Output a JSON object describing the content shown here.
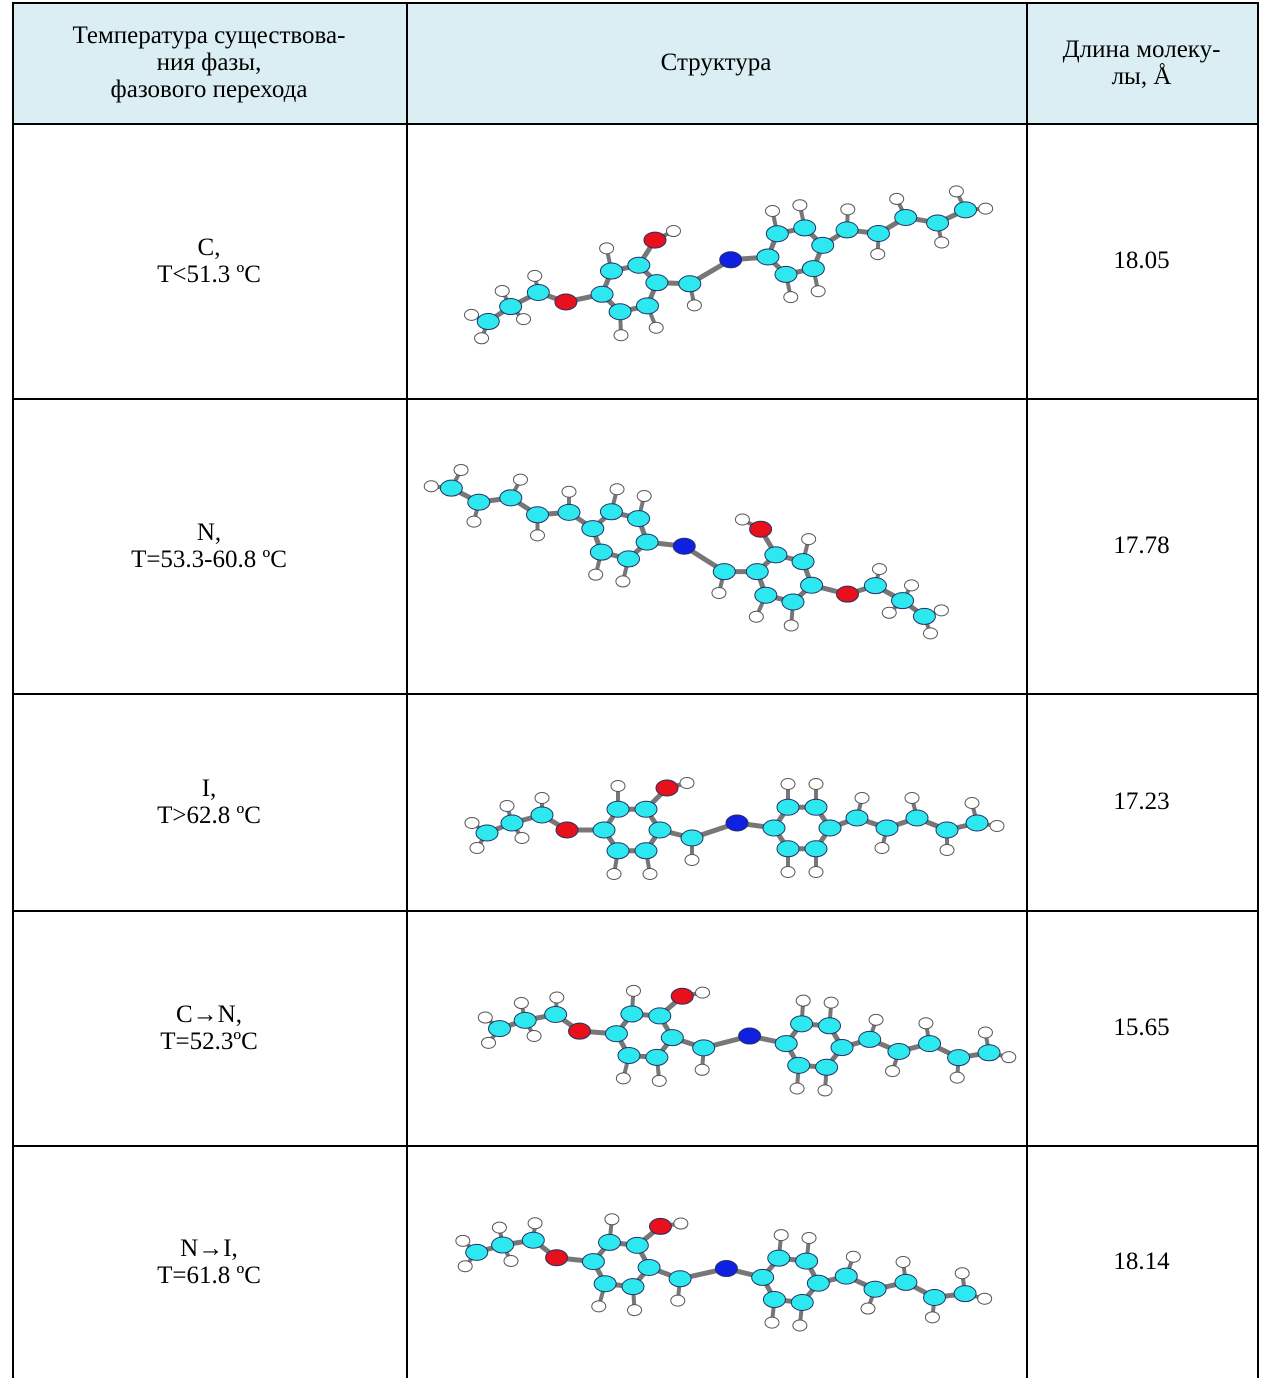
{
  "table": {
    "header": [
      [
        "Температура существова-",
        "ния фазы,",
        "фазового перехода"
      ],
      [
        "Структура"
      ],
      [
        "Длина молеку-",
        "лы, Å"
      ]
    ],
    "rows": [
      {
        "phase": "C,",
        "temperature": "T<51.3 ºC",
        "length": 18.05
      },
      {
        "phase": "N,",
        "temperature": "T=53.3-60.8 ºC",
        "length": 17.78
      },
      {
        "phase": "I,",
        "temperature": "T>62.8 ºC",
        "length": 17.23
      },
      {
        "phase": "C→N,",
        "temperature": "T=52.3ºC",
        "length": 15.65
      },
      {
        "phase": "N→I,",
        "temperature": "T=61.8 ºC",
        "length": 18.14
      }
    ]
  }
}
